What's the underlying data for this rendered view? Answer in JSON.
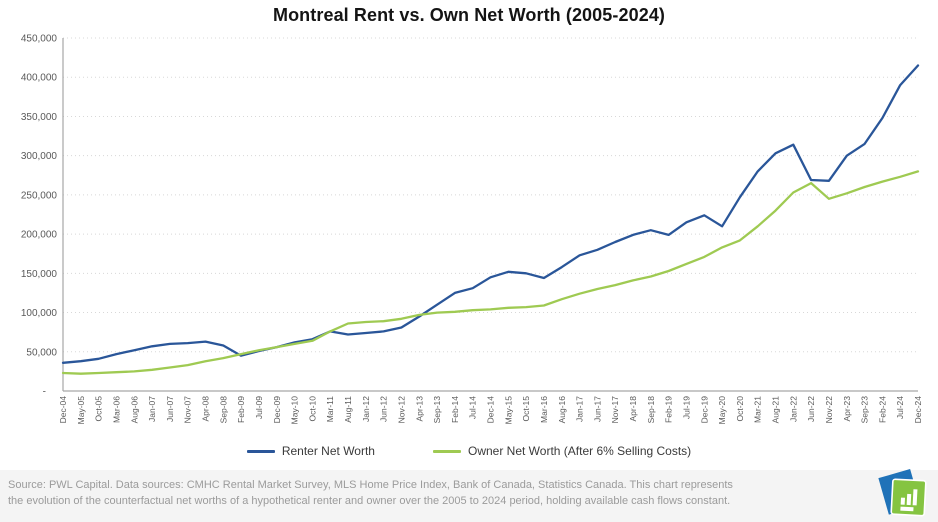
{
  "chart_data": {
    "type": "line",
    "title": "Montreal Rent vs. Own Net Worth (2005-2024)",
    "xlabel": "",
    "ylabel": "",
    "ylim": [
      0,
      450000
    ],
    "ytick_interval": 50000,
    "ytick_labels": [
      "-",
      "50,000",
      "100,000",
      "150,000",
      "200,000",
      "250,000",
      "300,000",
      "350,000",
      "400,000",
      "450,000"
    ],
    "grid": "horizontal-dotted",
    "legend_position": "bottom",
    "categories": [
      "Dec-04",
      "May-05",
      "Oct-05",
      "Mar-06",
      "Aug-06",
      "Jan-07",
      "Jun-07",
      "Nov-07",
      "Apr-08",
      "Sep-08",
      "Feb-09",
      "Jul-09",
      "Dec-09",
      "May-10",
      "Oct-10",
      "Mar-11",
      "Aug-11",
      "Jan-12",
      "Jun-12",
      "Nov-12",
      "Apr-13",
      "Sep-13",
      "Feb-14",
      "Jul-14",
      "Dec-14",
      "May-15",
      "Oct-15",
      "Mar-16",
      "Aug-16",
      "Jan-17",
      "Jun-17",
      "Nov-17",
      "Apr-18",
      "Sep-18",
      "Feb-19",
      "Jul-19",
      "Dec-19",
      "May-20",
      "Oct-20",
      "Mar-21",
      "Aug-21",
      "Jan-22",
      "Jun-22",
      "Nov-22",
      "Apr-23",
      "Sep-23",
      "Feb-24",
      "Jul-24",
      "Dec-24"
    ],
    "series": [
      {
        "name": "Renter Net Worth",
        "color": "#2a5699",
        "values": [
          36000,
          38000,
          41000,
          47000,
          52000,
          57000,
          60000,
          61000,
          63000,
          58000,
          45000,
          51000,
          56000,
          62000,
          66000,
          76000,
          72000,
          74000,
          76000,
          81000,
          95000,
          110000,
          125000,
          131000,
          145000,
          152000,
          150000,
          144000,
          158000,
          173000,
          180000,
          190000,
          199000,
          205000,
          199000,
          215000,
          224000,
          210000,
          247000,
          280000,
          303000,
          314000,
          269000,
          268000,
          300000,
          315000,
          348000,
          390000,
          415000
        ]
      },
      {
        "name": "Owner Net Worth (After 6% Selling Costs)",
        "color": "#9fca52",
        "values": [
          23000,
          22000,
          23000,
          24000,
          25000,
          27000,
          30000,
          33000,
          38000,
          42000,
          47000,
          52000,
          56000,
          60000,
          64000,
          76000,
          86000,
          88000,
          89000,
          92000,
          97000,
          100000,
          101000,
          103000,
          104000,
          106000,
          107000,
          109000,
          117000,
          124000,
          130000,
          135000,
          141000,
          146000,
          153000,
          162000,
          171000,
          183000,
          192000,
          210000,
          230000,
          253000,
          265000,
          245000,
          252000,
          260000,
          267000,
          273000,
          280000
        ]
      }
    ]
  },
  "footer": {
    "text": "Source: PWL Capital. Data sources: CMHC Rental Market Survey, MLS Home Price Index, Bank of Canada, Statistics Canada. This chart represents the evolution of the counterfactual net worths of a hypothetical renter and owner over the 2005 to 2024 period, holding available cash flows constant."
  },
  "logo": {
    "name": "PWL Capital",
    "blue": "#1f72b8",
    "green": "#85c441",
    "icon": "bar-chart-pages"
  }
}
